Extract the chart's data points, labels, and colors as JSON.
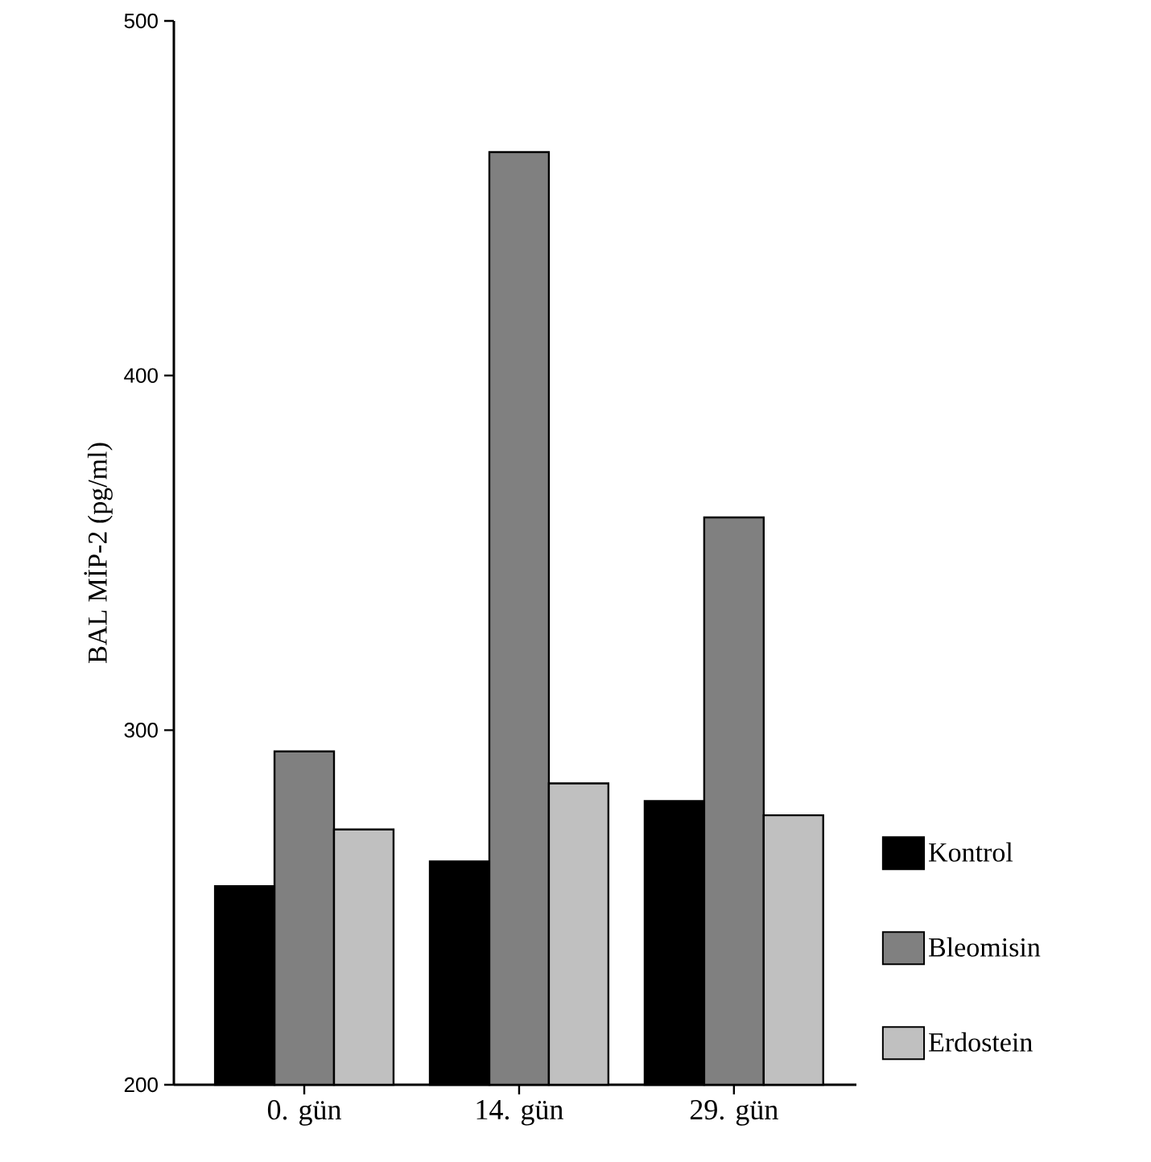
{
  "chart_data": {
    "type": "bar",
    "ylabel": "BAL MİP-2 (pg/ml)",
    "categories": [
      "0. gün",
      "14. gün",
      "29. gün"
    ],
    "series": [
      {
        "name": "Kontrol",
        "color": "#000000",
        "values": [
          256,
          263,
          280
        ]
      },
      {
        "name": "Bleomisin",
        "color": "#808080",
        "values": [
          294,
          463,
          360
        ]
      },
      {
        "name": "Erdostein",
        "color": "#c0c0c0",
        "values": [
          272,
          285,
          276
        ]
      }
    ],
    "ylim": [
      200,
      500
    ],
    "yticks": [
      200,
      300,
      400,
      500
    ],
    "grid": false,
    "legend": "right"
  }
}
